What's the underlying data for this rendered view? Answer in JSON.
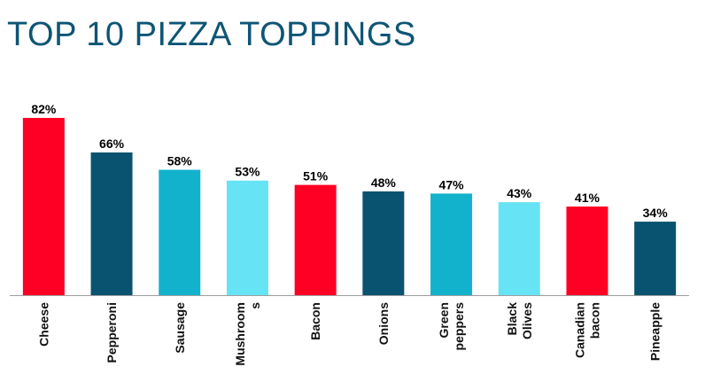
{
  "title": "TOP 10 PIZZA TOPPINGS",
  "chart_data": {
    "type": "bar",
    "title": "TOP 10 PIZZA TOPPINGS",
    "categories": [
      "Cheese",
      "Pepperoni",
      "Sausage",
      "Mushrooms",
      "Bacon",
      "Onions",
      "Green peppers",
      "Black Olives",
      "Canadian bacon",
      "Pineapple"
    ],
    "category_labels": [
      [
        "Cheese"
      ],
      [
        "Pepperoni"
      ],
      [
        "Sausage"
      ],
      [
        "Mushroom",
        "s"
      ],
      [
        "Bacon"
      ],
      [
        "Onions"
      ],
      [
        "Green",
        "peppers"
      ],
      [
        "Black",
        "Olives"
      ],
      [
        "Canadian",
        "bacon"
      ],
      [
        "Pineapple"
      ]
    ],
    "values": [
      82,
      66,
      58,
      53,
      51,
      48,
      47,
      43,
      41,
      34
    ],
    "value_labels": [
      "82%",
      "66%",
      "58%",
      "53%",
      "51%",
      "48%",
      "47%",
      "43%",
      "41%",
      "34%"
    ],
    "bar_colors": [
      "#ff0025",
      "#0a5370",
      "#12b2cc",
      "#66e3f4",
      "#ff0025",
      "#0a5370",
      "#12b2cc",
      "#66e3f4",
      "#ff0025",
      "#0a5370"
    ],
    "xlabel": "",
    "ylabel": "",
    "ylim": [
      0,
      82
    ],
    "grid": false,
    "legend": "none"
  }
}
